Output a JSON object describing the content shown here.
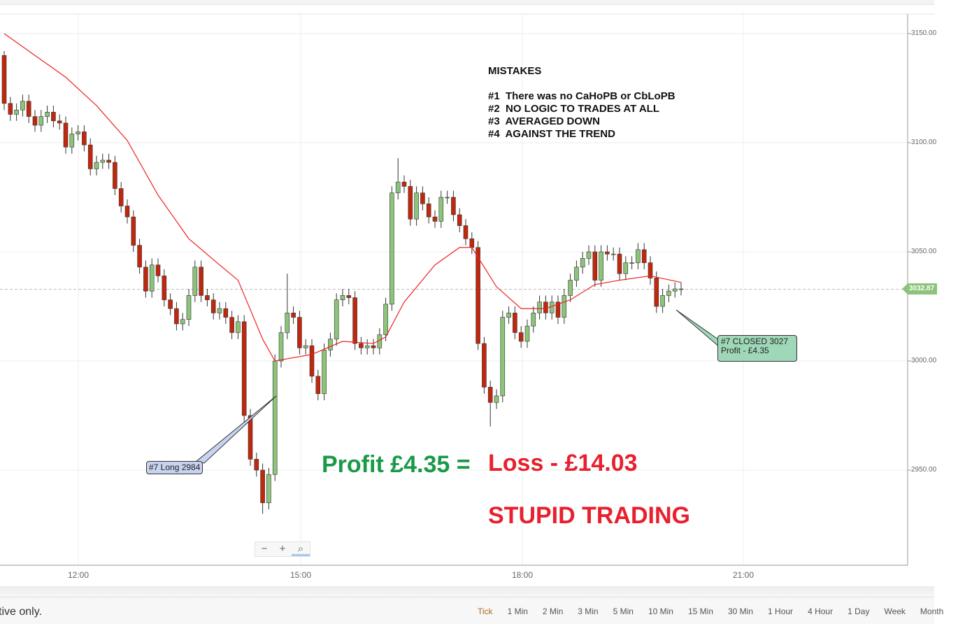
{
  "y_axis": {
    "ticks": [
      "3150.00",
      "3100.00",
      "3050.00",
      "3000.00",
      "2950.00"
    ],
    "tick_values": [
      3150,
      3100,
      3050,
      3000,
      2950
    ],
    "current_price": "3032.87",
    "current_value": 3032.87
  },
  "x_axis": {
    "ticks": [
      "12:00",
      "15:00",
      "18:00",
      "21:00"
    ]
  },
  "colors": {
    "up": "#8cc47a",
    "down": "#c0280e",
    "ma": "#ee2222",
    "price_line": "#8cc47a"
  },
  "candles": {
    "interval": "5 Min",
    "first_time": "11:00",
    "close": [
      3118,
      3113,
      3115,
      3119,
      3112,
      3108,
      3112,
      3114,
      3110,
      3109,
      3098,
      3104,
      3105,
      3099,
      3088,
      3091,
      3092,
      3091,
      3079,
      3071,
      3066,
      3053,
      3043,
      3032,
      3044,
      3039,
      3028,
      3024,
      3017,
      3019,
      3030,
      3043,
      3030,
      3028,
      3022,
      3024,
      3020,
      3013,
      3018,
      2975,
      2955,
      2950,
      2935,
      2948,
      3000,
      3013,
      3022,
      3020,
      3006,
      3007,
      2993,
      2985,
      3005,
      3010,
      3028,
      3030,
      3029,
      3008,
      3006,
      3007,
      3006,
      3012,
      3026,
      3077,
      3082,
      3080,
      3065,
      3077,
      3072,
      3066,
      3064,
      3075,
      3075,
      3067,
      3062,
      3056,
      3052,
      3008,
      2988,
      2981,
      2984,
      3020,
      3022,
      3013,
      3009,
      3016,
      3022,
      3027,
      3022,
      3027,
      3020,
      3030,
      3037,
      3043,
      3047,
      3050,
      3037,
      3050,
      3049,
      3049,
      3040,
      3045,
      3045,
      3051,
      3045,
      3038,
      3025,
      3030,
      3032,
      3033,
      3033
    ],
    "first_open": 3140,
    "wicks": {
      "high_extra": 3,
      "low_extra": 3
    },
    "extremes": [
      {
        "i": 42,
        "low": 2930
      },
      {
        "i": 46,
        "high": 3040
      },
      {
        "i": 64,
        "high": 3093
      },
      {
        "i": 79,
        "low": 2970
      },
      {
        "i": 0,
        "high": 3142
      }
    ]
  },
  "moving_average": [
    [
      0,
      3150
    ],
    [
      5,
      3140
    ],
    [
      10,
      3130
    ],
    [
      15,
      3117
    ],
    [
      20,
      3101
    ],
    [
      25,
      3076
    ],
    [
      30,
      3056
    ],
    [
      35,
      3044
    ],
    [
      38,
      3037
    ],
    [
      42,
      3010
    ],
    [
      44,
      3000
    ],
    [
      50,
      3003
    ],
    [
      55,
      3009
    ],
    [
      60,
      3008
    ],
    [
      62,
      3011
    ],
    [
      65,
      3027
    ],
    [
      70,
      3044
    ],
    [
      74,
      3052
    ],
    [
      76,
      3052
    ],
    [
      80,
      3034
    ],
    [
      84,
      3024
    ],
    [
      88,
      3024
    ],
    [
      92,
      3028
    ],
    [
      96,
      3035
    ],
    [
      100,
      3037
    ],
    [
      105,
      3039
    ],
    [
      110,
      3036
    ]
  ],
  "annotations": {
    "mistakes": "MISTAKES\n\n#1  There was no CaHoPB or CbLoPB\n#2  NO LOGIC TO TRADES AT ALL\n#3  AVERAGED DOWN\n#4  AGAINST THE TREND",
    "long_callout": "#7 Long 2984",
    "close_callout_line1": "#7 CLOSED 3027",
    "close_callout_line2": "Profit - £4.35",
    "profit": "Profit £4.35 =",
    "loss": "Loss - £14.03",
    "verdict": "STUPID TRADING"
  },
  "zoom_controls": {
    "minus": "−",
    "plus": "+",
    "reset": "⌕"
  },
  "footer": {
    "disclaimer": "tive only.",
    "timeframes": [
      "Tick",
      "1 Min",
      "2 Min",
      "3 Min",
      "5 Min",
      "10 Min",
      "15 Min",
      "30 Min",
      "1 Hour",
      "4 Hour",
      "1 Day",
      "Week",
      "Month"
    ],
    "active": "Tick"
  }
}
